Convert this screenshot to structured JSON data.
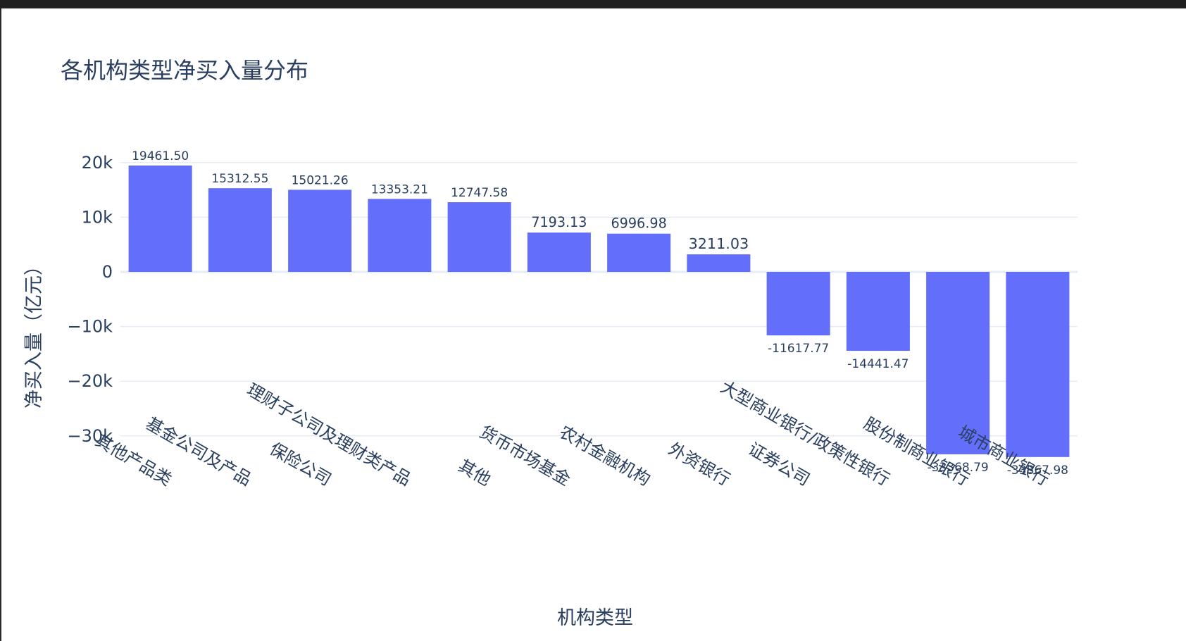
{
  "chart_data": {
    "type": "bar",
    "title": "各机构类型净买入量分布",
    "xlabel": "机构类型",
    "ylabel": "净买入量（亿元）",
    "categories": [
      "其他产品类",
      "基金公司及产品",
      "保险公司",
      "理财子公司及理财类产品",
      "其他",
      "货币市场基金",
      "农村金融机构",
      "外资银行",
      "证券公司",
      "大型商业银行/政策性银行",
      "股份制商业银行",
      "城市商业银行"
    ],
    "values": [
      19461.5,
      15312.55,
      15021.26,
      13353.21,
      12747.58,
      7193.13,
      6996.98,
      3211.03,
      -11617.77,
      -14441.47,
      -33368.79,
      -33867.98
    ],
    "value_labels": [
      "19461.50",
      "15312.55",
      "15021.26",
      "13353.21",
      "12747.58",
      "7193.13",
      "6996.98",
      "3211.03",
      "-11617.77",
      "-14441.47",
      "-33368.79",
      "-33867.98"
    ],
    "yticks": [
      {
        "value": 20000,
        "label": "20k"
      },
      {
        "value": 10000,
        "label": "10k"
      },
      {
        "value": 0,
        "label": "0"
      },
      {
        "value": -10000,
        "label": "−10k"
      },
      {
        "value": -20000,
        "label": "−20k"
      },
      {
        "value": -30000,
        "label": "−30k"
      }
    ],
    "ylim": [
      -36000,
      20800
    ],
    "grid": true,
    "colors": {
      "bar": "#636efa",
      "grid": "#e5ecf6",
      "text": "#2a3f5f"
    }
  }
}
